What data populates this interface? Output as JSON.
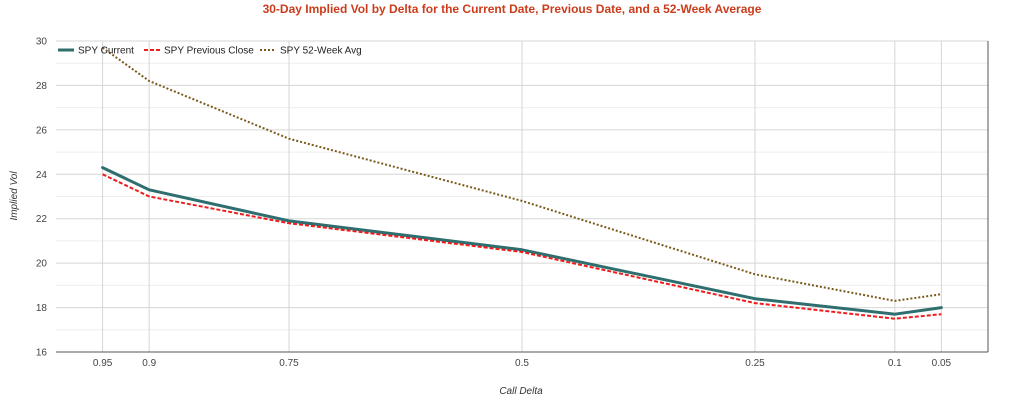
{
  "chart_data": {
    "type": "line",
    "title": "30-Day Implied Vol by Delta for the Current Date, Previous Date, and a 52-Week Average",
    "xlabel": "Call Delta",
    "ylabel": "Implied Vol",
    "x": [
      0.95,
      0.9,
      0.75,
      0.5,
      0.25,
      0.1,
      0.05
    ],
    "x_tick_labels": [
      "0.95",
      "0.9",
      "0.75",
      "0.5",
      "0.25",
      "0.1",
      "0.05"
    ],
    "xlim": [
      1.0,
      0.0
    ],
    "x_reversed": true,
    "ylim": [
      16,
      30
    ],
    "y_ticks": [
      16,
      18,
      20,
      22,
      24,
      26,
      28,
      30
    ],
    "y_tick_labels": [
      "16",
      "18",
      "20",
      "22",
      "24",
      "26",
      "28",
      "30"
    ],
    "grid": true,
    "legend_position": "top-left",
    "series": [
      {
        "name": "SPY Current",
        "color": "#2f6e6e",
        "style": "solid",
        "values": [
          24.3,
          23.3,
          21.9,
          20.6,
          18.4,
          17.7,
          18.0
        ]
      },
      {
        "name": "SPY Previous Close",
        "color": "#ee1c1c",
        "style": "dashed",
        "values": [
          24.0,
          23.0,
          21.8,
          20.5,
          18.2,
          17.5,
          17.7
        ]
      },
      {
        "name": "SPY 52-Week Avg",
        "color": "#7a5a1a",
        "style": "dotted",
        "values": [
          29.7,
          28.2,
          25.6,
          22.8,
          19.5,
          18.3,
          18.6
        ]
      }
    ]
  }
}
